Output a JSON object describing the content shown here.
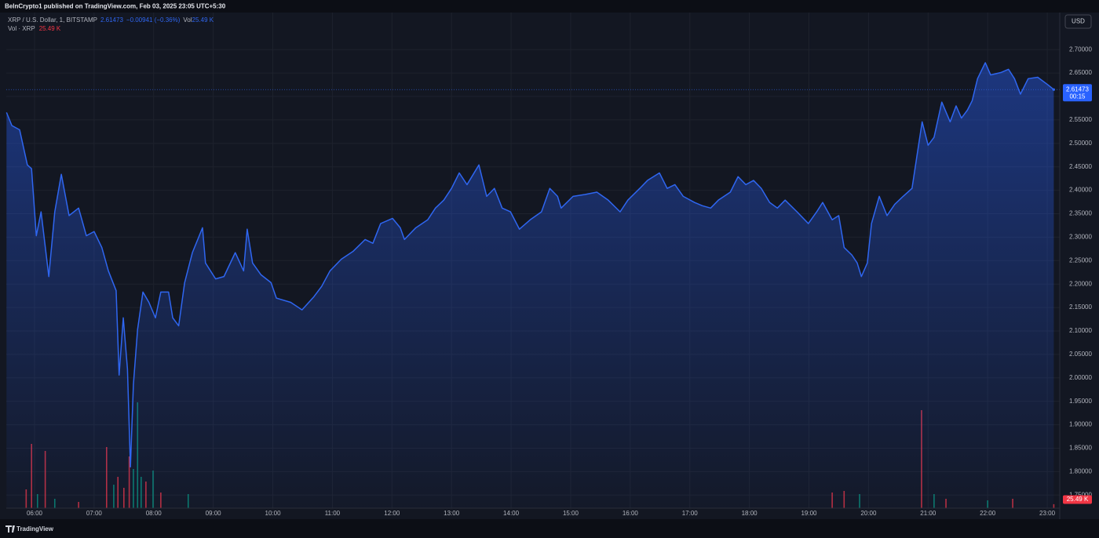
{
  "chart_data": {
    "type": "area",
    "title": "BeInCrypto1 published on TradingView.com, Feb 03, 2025 23:05 UTC+5:30",
    "legend": {
      "price": "2.61473",
      "change": "−0.00941 (−0.36%)",
      "vol_label": "Vol",
      "vol": "25.49 K",
      "vol_pane_value": "25.49 K"
    },
    "currency": "USD",
    "countdown": "00:15",
    "volume_tag": "25.49 K",
    "footer": "TradingView",
    "color": "#2f66f0",
    "grid": true,
    "xlim": [
      5.526,
      23.21
    ],
    "ylim": [
      1.722,
      2.779
    ],
    "y2lim": [
      0,
      3160
    ],
    "xticks": [
      {
        "value": 6,
        "label": "06:00"
      },
      {
        "value": 7,
        "label": "07:00"
      },
      {
        "value": 8,
        "label": "08:00"
      },
      {
        "value": 9,
        "label": "09:00"
      },
      {
        "value": 10,
        "label": "10:00"
      },
      {
        "value": 11,
        "label": "11:00"
      },
      {
        "value": 12,
        "label": "12:00"
      },
      {
        "value": 13,
        "label": "13:00"
      },
      {
        "value": 14,
        "label": "14:00"
      },
      {
        "value": 15,
        "label": "15:00"
      },
      {
        "value": 16,
        "label": "16:00"
      },
      {
        "value": 17,
        "label": "17:00"
      },
      {
        "value": 18,
        "label": "18:00"
      },
      {
        "value": 19,
        "label": "19:00"
      },
      {
        "value": 20,
        "label": "20:00"
      },
      {
        "value": 21,
        "label": "21:00"
      },
      {
        "value": 22,
        "label": "22:00"
      },
      {
        "value": 23,
        "label": "23:00"
      }
    ],
    "yticks": [
      {
        "value": 1.75,
        "label": "1.75000"
      },
      {
        "value": 1.8,
        "label": "1.80000"
      },
      {
        "value": 1.85,
        "label": "1.85000"
      },
      {
        "value": 1.9,
        "label": "1.90000"
      },
      {
        "value": 1.95,
        "label": "1.95000"
      },
      {
        "value": 2.0,
        "label": "2.00000"
      },
      {
        "value": 2.05,
        "label": "2.05000"
      },
      {
        "value": 2.1,
        "label": "2.10000"
      },
      {
        "value": 2.15,
        "label": "2.15000"
      },
      {
        "value": 2.2,
        "label": "2.20000"
      },
      {
        "value": 2.25,
        "label": "2.25000"
      },
      {
        "value": 2.3,
        "label": "2.30000"
      },
      {
        "value": 2.35,
        "label": "2.35000"
      },
      {
        "value": 2.4,
        "label": "2.40000"
      },
      {
        "value": 2.45,
        "label": "2.45000"
      },
      {
        "value": 2.5,
        "label": "2.50000"
      },
      {
        "value": 2.55,
        "label": "2.55000"
      },
      {
        "value": 2.6,
        "label": "2.60000"
      },
      {
        "value": 2.65,
        "label": "2.65000"
      },
      {
        "value": 2.7,
        "label": "2.70000"
      }
    ],
    "x": [
      5.53,
      5.62,
      5.75,
      5.88,
      5.95,
      6.03,
      6.11,
      6.24,
      6.34,
      6.45,
      6.58,
      6.74,
      6.87,
      7.0,
      7.13,
      7.24,
      7.37,
      7.42,
      7.49,
      7.56,
      7.61,
      7.66,
      7.73,
      7.82,
      7.92,
      8.03,
      8.12,
      8.25,
      8.32,
      8.42,
      8.52,
      8.65,
      8.82,
      8.87,
      9.04,
      9.18,
      9.37,
      9.51,
      9.57,
      9.66,
      9.8,
      9.97,
      10.06,
      10.3,
      10.49,
      10.69,
      10.82,
      10.96,
      11.15,
      11.35,
      11.55,
      11.68,
      11.81,
      12.01,
      12.14,
      12.21,
      12.4,
      12.6,
      12.73,
      12.87,
      13.0,
      13.13,
      13.26,
      13.46,
      13.59,
      13.72,
      13.85,
      13.99,
      14.14,
      14.32,
      14.51,
      14.65,
      14.78,
      14.84,
      15.04,
      15.24,
      15.44,
      15.63,
      15.83,
      15.96,
      16.16,
      16.29,
      16.49,
      16.62,
      16.75,
      16.89,
      17.08,
      17.21,
      17.35,
      17.48,
      17.68,
      17.81,
      17.94,
      18.07,
      18.2,
      18.34,
      18.47,
      18.6,
      18.8,
      18.99,
      19.13,
      19.23,
      19.39,
      19.5,
      19.59,
      19.72,
      19.81,
      19.88,
      19.98,
      20.05,
      20.18,
      20.31,
      20.44,
      20.58,
      20.73,
      20.81,
      20.9,
      21.0,
      21.1,
      21.23,
      21.37,
      21.47,
      21.56,
      21.66,
      21.74,
      21.83,
      21.96,
      22.05,
      22.22,
      22.35,
      22.45,
      22.55,
      22.68,
      22.84,
      23.01,
      23.11
    ],
    "series": [
      {
        "name": "XRP / U.S. Dollar, 1, BITSTAMP",
        "color": "#2f66f0",
        "values": [
          2.566,
          2.538,
          2.529,
          2.454,
          2.446,
          2.303,
          2.354,
          2.216,
          2.354,
          2.434,
          2.346,
          2.362,
          2.303,
          2.312,
          2.278,
          2.228,
          2.186,
          2.006,
          2.128,
          2.019,
          1.81,
          1.986,
          2.103,
          2.183,
          2.161,
          2.128,
          2.183,
          2.183,
          2.128,
          2.111,
          2.203,
          2.267,
          2.32,
          2.245,
          2.211,
          2.216,
          2.267,
          2.228,
          2.317,
          2.245,
          2.22,
          2.203,
          2.17,
          2.161,
          2.145,
          2.173,
          2.195,
          2.228,
          2.253,
          2.27,
          2.295,
          2.287,
          2.329,
          2.34,
          2.32,
          2.295,
          2.32,
          2.337,
          2.362,
          2.379,
          2.404,
          2.437,
          2.412,
          2.454,
          2.387,
          2.404,
          2.362,
          2.354,
          2.317,
          2.337,
          2.354,
          2.404,
          2.387,
          2.362,
          2.387,
          2.391,
          2.396,
          2.379,
          2.354,
          2.379,
          2.404,
          2.421,
          2.437,
          2.404,
          2.412,
          2.387,
          2.374,
          2.367,
          2.362,
          2.379,
          2.396,
          2.429,
          2.412,
          2.421,
          2.404,
          2.374,
          2.362,
          2.379,
          2.354,
          2.329,
          2.354,
          2.374,
          2.337,
          2.346,
          2.278,
          2.262,
          2.245,
          2.216,
          2.245,
          2.329,
          2.387,
          2.346,
          2.37,
          2.387,
          2.404,
          2.471,
          2.546,
          2.496,
          2.513,
          2.588,
          2.546,
          2.58,
          2.554,
          2.571,
          2.591,
          2.638,
          2.672,
          2.646,
          2.651,
          2.658,
          2.638,
          2.605,
          2.638,
          2.641,
          2.625,
          2.61473
        ]
      },
      {
        "name": "Vol · XRP",
        "axis": "y2",
        "x": [
          5.86,
          5.95,
          6.05,
          6.18,
          6.34,
          6.74,
          7.21,
          7.33,
          7.4,
          7.5,
          7.59,
          7.66,
          7.73,
          7.79,
          7.87,
          7.99,
          8.12,
          8.58,
          19.39,
          19.59,
          19.85,
          20.89,
          21.1,
          21.3,
          22.0,
          22.42,
          23.11
        ],
        "values": [
          120,
          410,
          90,
          365,
          60,
          40,
          390,
          150,
          200,
          130,
          330,
          250,
          675,
          200,
          170,
          240,
          100,
          90,
          100,
          110,
          90,
          625,
          90,
          60,
          50,
          60,
          25.49
        ],
        "colors": [
          "#f23645",
          "#f23645",
          "#089981",
          "#f23645",
          "#089981",
          "#f23645",
          "#f23645",
          "#089981",
          "#f23645",
          "#f23645",
          "#f23645",
          "#089981",
          "#089981",
          "#089981",
          "#f23645",
          "#089981",
          "#f23645",
          "#089981",
          "#f23645",
          "#f23645",
          "#089981",
          "#f23645",
          "#089981",
          "#f23645",
          "#089981",
          "#f23645",
          "#f23645"
        ]
      }
    ]
  }
}
